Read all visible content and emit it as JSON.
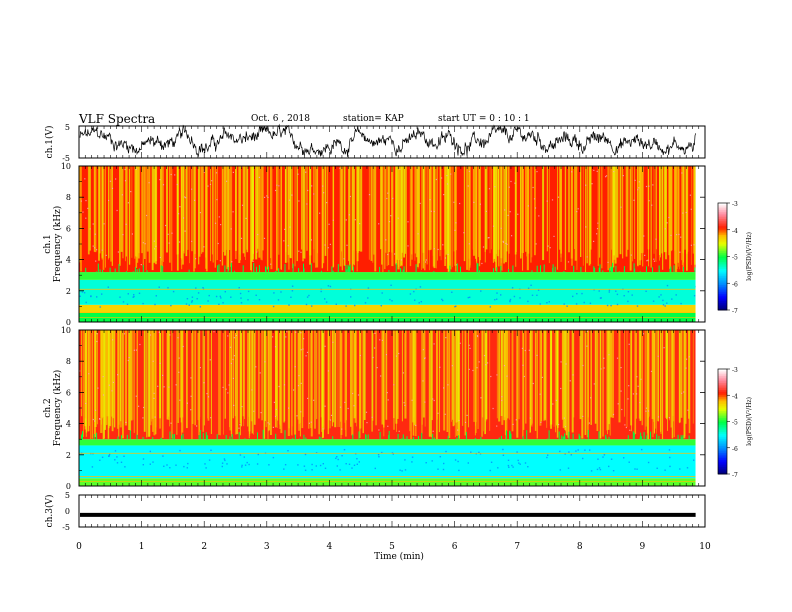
{
  "header": {
    "title": "VLF Spectra",
    "date": "Oct. 6  , 2018",
    "station": "station= KAP",
    "start": "start  UT =   0  : 10 : 1"
  },
  "chart_data": [
    {
      "type": "line",
      "panel": "ch1-waveform",
      "ylabel": "ch.1(V)",
      "ylim": [
        -5,
        5
      ],
      "ytick_labels": [
        "5",
        "-5"
      ],
      "xlim": [
        0,
        10
      ],
      "color": "#000000"
    },
    {
      "type": "heatmap",
      "panel": "ch1-spectrogram",
      "ylabel_lines": [
        "ch.1",
        "Frequency  (kHz)"
      ],
      "ylim": [
        0,
        10
      ],
      "ytick_labels": [
        "0",
        "2",
        "4",
        "6",
        "8",
        "10"
      ],
      "xlim": [
        0,
        10
      ],
      "data_end_min": 9.85,
      "bands_kHz": [
        {
          "from": 0.0,
          "to": 0.6,
          "level": -5.0
        },
        {
          "from": 0.6,
          "to": 1.1,
          "level": -4.3
        },
        {
          "from": 1.1,
          "to": 2.7,
          "level": -5.4
        },
        {
          "from": 2.7,
          "to": 3.2,
          "level": -4.9
        },
        {
          "from": 3.2,
          "to": 10.0,
          "level": -3.9
        }
      ],
      "colorbar": {
        "label": "log(PSD)(V²/Hz)",
        "range": [
          -7,
          -3
        ],
        "tick_labels": [
          "-3",
          "-4",
          "-5",
          "-6",
          "-7"
        ]
      }
    },
    {
      "type": "heatmap",
      "panel": "ch2-spectrogram",
      "ylabel_lines": [
        "ch.2",
        "Frequency  (kHz)"
      ],
      "ylim": [
        0,
        10
      ],
      "ytick_labels": [
        "0",
        "2",
        "4",
        "6",
        "8",
        "10"
      ],
      "xlim": [
        0,
        10
      ],
      "data_end_min": 9.85,
      "bands_kHz": [
        {
          "from": 0.0,
          "to": 0.5,
          "level": -4.8
        },
        {
          "from": 0.5,
          "to": 2.6,
          "level": -5.5
        },
        {
          "from": 2.6,
          "to": 3.0,
          "level": -4.9
        },
        {
          "from": 3.0,
          "to": 10.0,
          "level": -3.85
        }
      ],
      "colorbar": {
        "label": "log(PSD)(V²/Hz)",
        "range": [
          -7,
          -3
        ],
        "tick_labels": [
          "-3",
          "-4",
          "-5",
          "-6",
          "-7"
        ]
      }
    },
    {
      "type": "line",
      "panel": "ch3-waveform",
      "ylabel": "ch.3(V)",
      "ylim": [
        -5,
        5
      ],
      "ytick_labels": [
        "5",
        "0",
        "-5"
      ],
      "xlim": [
        0,
        10
      ],
      "constant_value": -1.2,
      "xlabel": "Time  (min)",
      "xtick_labels": [
        "0",
        "1",
        "2",
        "3",
        "4",
        "5",
        "6",
        "7",
        "8",
        "9",
        "10"
      ]
    }
  ]
}
